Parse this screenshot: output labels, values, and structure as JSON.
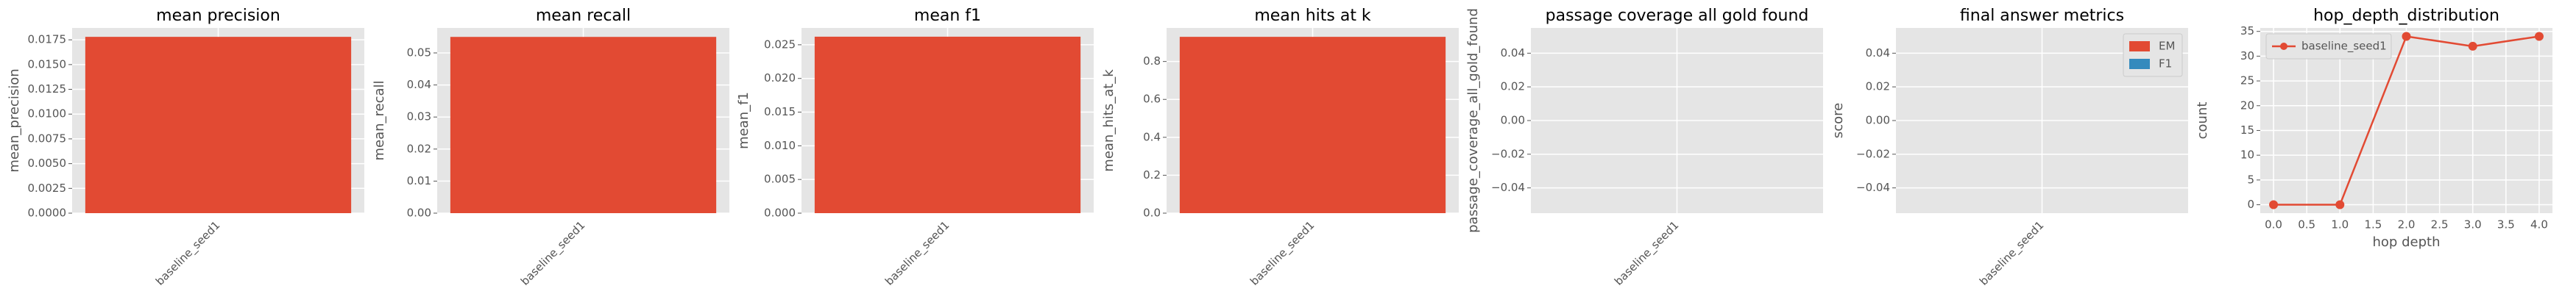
{
  "chart_data": [
    {
      "type": "bar",
      "title": "mean precision",
      "ylabel": "mean_precision",
      "categories": [
        "baseline_seed1"
      ],
      "values": [
        0.0178
      ],
      "color": "#E24A33",
      "ylim": [
        0,
        0.0187
      ],
      "yticks": [
        {
          "value": 0,
          "label": "0.0000"
        },
        0.0025,
        {
          "value": 0.005,
          "label": "0.0050"
        },
        0.0075,
        {
          "value": 0.01,
          "label": "0.0100"
        },
        0.0125,
        {
          "value": 0.015,
          "label": "0.0150"
        },
        0.0175
      ],
      "grid": true
    },
    {
      "type": "bar",
      "title": "mean recall",
      "ylabel": "mean_recall",
      "categories": [
        "baseline_seed1"
      ],
      "values": [
        0.055
      ],
      "color": "#E24A33",
      "ylim": [
        0,
        0.0578
      ],
      "yticks": [
        {
          "value": 0,
          "label": "0.00"
        },
        0.01,
        0.02,
        0.03,
        0.04,
        0.05
      ],
      "grid": true
    },
    {
      "type": "bar",
      "title": "mean f1",
      "ylabel": "mean_f1",
      "categories": [
        "baseline_seed1"
      ],
      "values": [
        0.0262
      ],
      "color": "#E24A33",
      "ylim": [
        0,
        0.0275
      ],
      "yticks": [
        {
          "value": 0,
          "label": "0.000"
        },
        0.005,
        {
          "value": 0.01,
          "label": "0.010"
        },
        0.015,
        {
          "value": 0.02,
          "label": "0.020"
        },
        0.025
      ],
      "grid": true
    },
    {
      "type": "bar",
      "title": "mean hits at k",
      "ylabel": "mean_hits_at_k",
      "categories": [
        "baseline_seed1"
      ],
      "values": [
        0.93
      ],
      "color": "#E24A33",
      "ylim": [
        0,
        0.977
      ],
      "yticks": [
        {
          "value": 0,
          "label": "0.0"
        },
        0.2,
        0.4,
        0.6,
        0.8
      ],
      "grid": true
    },
    {
      "type": "bar",
      "title": "passage coverage all gold found",
      "ylabel": "passage_coverage_all_gold_found",
      "categories": [
        "baseline_seed1"
      ],
      "values": [
        null
      ],
      "color": "#E24A33",
      "ylim": [
        -0.055,
        0.055
      ],
      "yticks": [
        {
          "value": -0.04,
          "label": "−0.04"
        },
        {
          "value": -0.02,
          "label": "−0.02"
        },
        {
          "value": 0,
          "label": "0.00"
        },
        0.02,
        0.04
      ],
      "grid": true
    },
    {
      "type": "bar",
      "title": "final answer metrics",
      "ylabel": "score",
      "categories": [
        "baseline_seed1"
      ],
      "series": [
        {
          "name": "EM",
          "color": "#E24A33",
          "values": [
            null
          ]
        },
        {
          "name": "F1",
          "color": "#348ABD",
          "values": [
            null
          ]
        }
      ],
      "ylim": [
        -0.055,
        0.055
      ],
      "yticks": [
        {
          "value": -0.04,
          "label": "−0.04"
        },
        {
          "value": -0.02,
          "label": "−0.02"
        },
        {
          "value": 0,
          "label": "0.00"
        },
        0.02,
        0.04
      ],
      "grid": true,
      "legend": "upper-right"
    },
    {
      "type": "line",
      "title": "hop_depth_distribution",
      "xlabel": "hop depth",
      "ylabel": "count",
      "x": [
        0,
        1,
        2,
        3,
        4
      ],
      "series": [
        {
          "name": "baseline_seed1",
          "color": "#E24A33",
          "values": [
            0,
            0,
            34,
            32,
            34
          ]
        }
      ],
      "xlim": [
        -0.2,
        4.2
      ],
      "xticks": [
        {
          "value": 0,
          "label": "0.0"
        },
        0.5,
        {
          "value": 1,
          "label": "1.0"
        },
        1.5,
        {
          "value": 2,
          "label": "2.0"
        },
        2.5,
        {
          "value": 3,
          "label": "3.0"
        },
        3.5,
        {
          "value": 4,
          "label": "4.0"
        }
      ],
      "ylim": [
        -1.7,
        35.7
      ],
      "yticks": [
        0,
        5,
        10,
        15,
        20,
        25,
        30,
        35
      ],
      "grid": true,
      "legend": "upper-left"
    }
  ]
}
